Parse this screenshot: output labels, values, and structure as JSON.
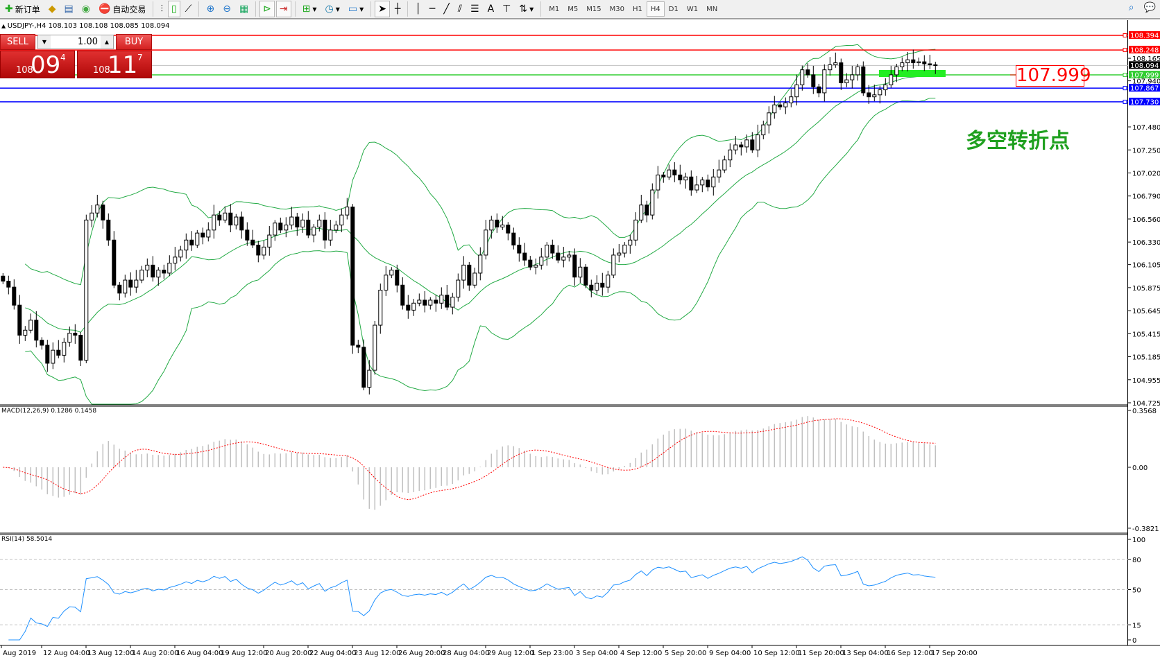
{
  "toolbar": {
    "new_order": "新订单",
    "auto_trading": "自动交易",
    "timeframes": [
      "M1",
      "M5",
      "M15",
      "M30",
      "H1",
      "H4",
      "D1",
      "W1",
      "MN"
    ],
    "active_timeframe": "H4",
    "text_tool": "A"
  },
  "symbol_header": "USDJPY-,H4  108.103 108.108 108.085 108.094",
  "trade_panel": {
    "sell": "SELL",
    "buy": "BUY",
    "lot": "1.00",
    "sell_prefix": "108",
    "sell_big": "09",
    "sell_sup": "4",
    "buy_prefix": "108",
    "buy_big": "11",
    "buy_sup": "7"
  },
  "price_axis": {
    "ticks": [
      "108.165",
      "107.940",
      "107.480",
      "107.250",
      "107.020",
      "106.790",
      "106.560",
      "106.330",
      "106.105",
      "105.875",
      "105.645",
      "105.415",
      "105.185",
      "104.955",
      "104.725"
    ],
    "levels": [
      {
        "value": "108.394",
        "color": "#ff0000"
      },
      {
        "value": "108.248",
        "color": "#ff0000"
      },
      {
        "value": "108.094",
        "color": "#000000",
        "line": "#c0c0c0"
      },
      {
        "value": "107.999",
        "color": "#32cd32"
      },
      {
        "value": "107.867",
        "color": "#0000ff"
      },
      {
        "value": "107.730",
        "color": "#0000ff"
      }
    ]
  },
  "annotations": {
    "price_box": "107.999",
    "turning_point": "多空转折点"
  },
  "macd": {
    "label": "MACD(12,26,9) 0.1286 0.1458",
    "ticks": [
      "0.3568",
      "0.00",
      "-0.3821"
    ]
  },
  "rsi": {
    "label": "RSI(14) 58.5014",
    "ticks": [
      "100",
      "80",
      "50",
      "15",
      "0"
    ]
  },
  "time_axis": [
    "Aug 2019",
    "12 Aug 04:00",
    "13 Aug 12:00",
    "14 Aug 20:00",
    "16 Aug 04:00",
    "19 Aug 12:00",
    "20 Aug 20:00",
    "22 Aug 04:00",
    "23 Aug 12:00",
    "26 Aug 20:00",
    "28 Aug 04:00",
    "29 Aug 12:00",
    "1 Sep 23:00",
    "3 Sep 04:00",
    "4 Sep 12:00",
    "5 Sep 20:00",
    "9 Sep 04:00",
    "10 Sep 12:00",
    "11 Sep 20:00",
    "13 Sep 04:00",
    "16 Sep 12:00",
    "17 Sep 20:00"
  ],
  "chart_data": {
    "type": "candlestick",
    "symbol": "USDJPY-",
    "timeframe": "H4",
    "ylim": [
      104.725,
      108.394
    ],
    "indicators": [
      "Bollinger Bands",
      "MACD(12,26,9)",
      "RSI(14)"
    ],
    "colors": {
      "bands": "#22aa44",
      "macd_hist": "#c0c0c0",
      "macd_signal": "#ff0000",
      "rsi": "#1e90ff"
    },
    "close": [
      105.94,
      105.88,
      105.7,
      105.4,
      105.45,
      105.55,
      105.35,
      105.3,
      105.12,
      105.25,
      105.2,
      105.33,
      105.42,
      105.4,
      105.15,
      106.55,
      106.62,
      106.7,
      106.55,
      106.35,
      105.9,
      105.82,
      105.95,
      105.88,
      105.95,
      106.05,
      106.1,
      105.98,
      106.05,
      106.02,
      106.12,
      106.18,
      106.25,
      106.35,
      106.3,
      106.42,
      106.38,
      106.45,
      106.6,
      106.55,
      106.62,
      106.5,
      106.58,
      106.45,
      106.35,
      106.3,
      106.2,
      106.28,
      106.4,
      106.52,
      106.45,
      106.5,
      106.58,
      106.48,
      106.55,
      106.4,
      106.48,
      106.55,
      106.35,
      106.45,
      106.5,
      106.6,
      106.68,
      105.3,
      105.28,
      104.88,
      105.05,
      105.5,
      105.85,
      106.0,
      106.05,
      105.9,
      105.7,
      105.65,
      105.72,
      105.75,
      105.7,
      105.75,
      105.72,
      105.8,
      105.68,
      105.78,
      105.95,
      106.1,
      105.9,
      106.02,
      106.2,
      106.45,
      106.55,
      106.48,
      106.5,
      106.42,
      106.3,
      106.22,
      106.15,
      106.08,
      106.1,
      106.18,
      106.3,
      106.22,
      106.15,
      106.18,
      106.2,
      105.98,
      106.08,
      105.9,
      105.85,
      105.92,
      105.88,
      106.0,
      106.2,
      106.22,
      106.3,
      106.35,
      106.55,
      106.7,
      106.6,
      106.85,
      107.0,
      106.98,
      107.05,
      107.0,
      106.95,
      106.98,
      106.85,
      106.9,
      106.95,
      106.88,
      106.98,
      107.05,
      107.15,
      107.25,
      107.3,
      107.28,
      107.35,
      107.25,
      107.4,
      107.5,
      107.62,
      107.7,
      107.68,
      107.72,
      107.78,
      107.9,
      108.05,
      108.0,
      107.88,
      107.82,
      108.05,
      108.1,
      108.12,
      107.92,
      107.95,
      108.0,
      108.08,
      107.82,
      107.78,
      107.8,
      107.85,
      107.9,
      108.0,
      108.08,
      108.12,
      108.15,
      108.12,
      108.13,
      108.11,
      108.1,
      108.094
    ]
  }
}
